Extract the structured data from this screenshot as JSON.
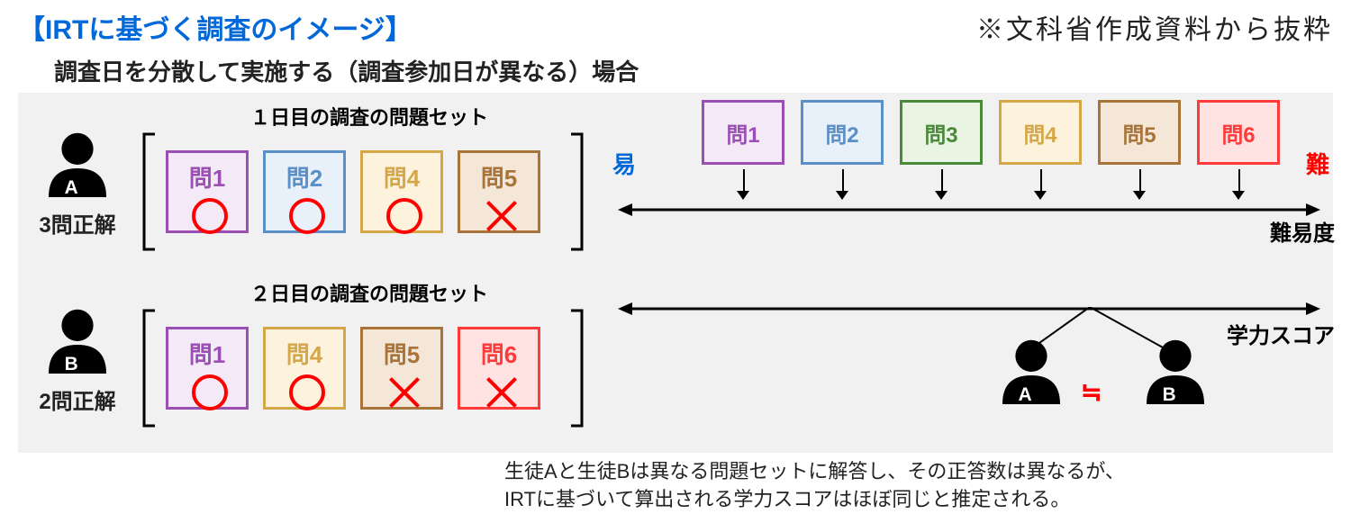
{
  "header": {
    "title_bracket_open": "【",
    "title_text": "IRTに基づく調査のイメージ",
    "title_bracket_close": "】",
    "title_color": "#0068d8",
    "right_note": "※文科省作成資料から抜粋"
  },
  "subtitle": "調査日を分散して実施する（調査参加日が異なる）場合",
  "colors": {
    "purple": {
      "border": "#9b4fb5",
      "fill": "#f3e9f7"
    },
    "blue": {
      "border": "#5b8fc7",
      "fill": "#e8f0fa"
    },
    "green": {
      "border": "#4a8a3a",
      "fill": "#e9f4e3"
    },
    "yellow": {
      "border": "#d4a84a",
      "fill": "#fdf3dc"
    },
    "brown": {
      "border": "#a8743a",
      "fill": "#f4e7d7"
    },
    "red": {
      "border": "#ff3a3a",
      "fill": "#ffe3e3"
    },
    "mark_red": "#ff0000",
    "easy_text": "#0068d8",
    "hard_text": "#ff0000",
    "band_bg": "#f1f1f1",
    "text": "#222222"
  },
  "studentA": {
    "letter": "A",
    "score_text": "3問正解",
    "set_title": "１日目の調査の問題セット",
    "questions": [
      {
        "label": "問1",
        "colorKey": "purple",
        "mark": "circle"
      },
      {
        "label": "問2",
        "colorKey": "blue",
        "mark": "circle"
      },
      {
        "label": "問4",
        "colorKey": "yellow",
        "mark": "circle"
      },
      {
        "label": "問5",
        "colorKey": "brown",
        "mark": "cross"
      }
    ]
  },
  "studentB": {
    "letter": "B",
    "score_text": "2問正解",
    "set_title": "２日目の調査の問題セット",
    "questions": [
      {
        "label": "問1",
        "colorKey": "purple",
        "mark": "circle"
      },
      {
        "label": "問4",
        "colorKey": "yellow",
        "mark": "circle"
      },
      {
        "label": "問5",
        "colorKey": "brown",
        "mark": "cross"
      },
      {
        "label": "問6",
        "colorKey": "red",
        "mark": "cross"
      }
    ]
  },
  "difficulty": {
    "easy_label": "易",
    "hard_label": "難",
    "axis_label": "難易度",
    "items": [
      {
        "label": "問1",
        "colorKey": "purple"
      },
      {
        "label": "問2",
        "colorKey": "blue"
      },
      {
        "label": "問3",
        "colorKey": "green"
      },
      {
        "label": "問4",
        "colorKey": "yellow"
      },
      {
        "label": "問5",
        "colorKey": "brown"
      },
      {
        "label": "問6",
        "colorKey": "red"
      }
    ]
  },
  "score": {
    "axis_label": "学力スコア",
    "approx_symbol": "≒",
    "people": [
      {
        "letter": "A"
      },
      {
        "letter": "B"
      }
    ]
  },
  "footnote": {
    "line1": "生徒Aと生徒Bは異なる問題セットに解答し、その正答数は異なるが、",
    "line2": "IRTに基づいて算出される学力スコアはほぼ同じと推定される。"
  }
}
